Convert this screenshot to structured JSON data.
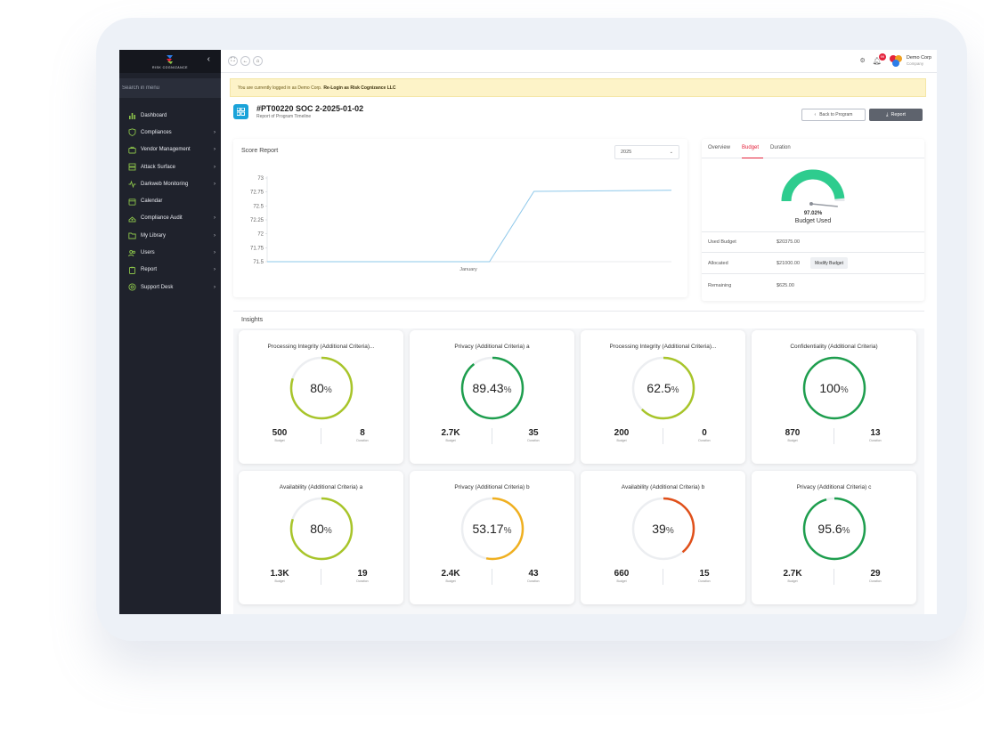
{
  "brand": {
    "name": "RISK COGNIZANCE"
  },
  "sidebar": {
    "search_placeholder": "Search in menu",
    "items": [
      {
        "label": "Dashboard",
        "icon": "bar-chart-icon",
        "has_children": false
      },
      {
        "label": "Compliances",
        "icon": "shield-icon",
        "has_children": true
      },
      {
        "label": "Vendor Management",
        "icon": "briefcase-icon",
        "has_children": true
      },
      {
        "label": "Attack Surface",
        "icon": "server-icon",
        "has_children": true
      },
      {
        "label": "Darkweb Monitoring",
        "icon": "pulse-icon",
        "has_children": true
      },
      {
        "label": "Calendar",
        "icon": "calendar-icon",
        "has_children": false
      },
      {
        "label": "Compliance Audit",
        "icon": "audit-icon",
        "has_children": true
      },
      {
        "label": "My Library",
        "icon": "folder-icon",
        "has_children": true
      },
      {
        "label": "Users",
        "icon": "users-icon",
        "has_children": true
      },
      {
        "label": "Report",
        "icon": "clipboard-icon",
        "has_children": true
      },
      {
        "label": "Support Desk",
        "icon": "lifebuoy-icon",
        "has_children": true
      }
    ],
    "accent": "#8bc34a"
  },
  "topbar": {
    "notification_count": "99",
    "org_name": "Demo Corp",
    "org_type": "Company"
  },
  "notice": {
    "text": "You are currently logged in as Demo Corp.",
    "link": "Re-Login as Risk Cognizance LLC"
  },
  "page": {
    "title": "#PT00220 SOC 2-2025-01-02",
    "subtitle": "Report of Program Timeline",
    "back_label": "Back to Program",
    "report_label": "Report"
  },
  "score_report": {
    "title": "Score Report",
    "year": "2025"
  },
  "chart_data": {
    "type": "line",
    "title": "Score Report",
    "xlabel": "",
    "ylabel": "",
    "x_tick_labels": [
      "January"
    ],
    "y_ticks": [
      71.5,
      71.75,
      72,
      72.25,
      72.5,
      72.75,
      73
    ],
    "ylim": [
      71.5,
      73
    ],
    "grid": false,
    "series": [
      {
        "color": "#8ec8ea",
        "points": [
          [
            0,
            71.5
          ],
          [
            0.55,
            71.5
          ],
          [
            0.66,
            72.76
          ],
          [
            1,
            72.78
          ]
        ]
      }
    ]
  },
  "budget": {
    "tabs": [
      "Overview",
      "Budget",
      "Duration"
    ],
    "active_tab": "Budget",
    "used_percent": 97.02,
    "used_percent_label": "97.02%",
    "gauge_label": "Budget Used",
    "gauge_color": "#2ecc8e",
    "rows": [
      {
        "label": "Used Budget",
        "value": "$20375.00"
      },
      {
        "label": "Allocated",
        "value": "$21000.00",
        "action": "Modify Budget"
      },
      {
        "label": "Remaining",
        "value": "$625.00"
      }
    ]
  },
  "insights": {
    "title": "Insights",
    "budget_caption": "Budget",
    "duration_caption": "Duration",
    "cards": [
      {
        "title": "Processing Integrity (Additional Criteria)...",
        "percent": 80,
        "percent_label": "80",
        "budget": "500",
        "duration": "8",
        "color": "#a8c52a"
      },
      {
        "title": "Privacy (Additional Criteria) a",
        "percent": 89.43,
        "percent_label": "89.43",
        "budget": "2.7K",
        "duration": "35",
        "color": "#1e9e4e"
      },
      {
        "title": "Processing Integrity (Additional Criteria)...",
        "percent": 62.5,
        "percent_label": "62.5",
        "budget": "200",
        "duration": "0",
        "color": "#a8c52a"
      },
      {
        "title": "Confidentiality (Additional Criteria)",
        "percent": 100,
        "percent_label": "100",
        "budget": "870",
        "duration": "13",
        "color": "#1e9e4e"
      },
      {
        "title": "Availability (Additional Criteria) a",
        "percent": 80,
        "percent_label": "80",
        "budget": "1.3K",
        "duration": "19",
        "color": "#a8c52a"
      },
      {
        "title": "Privacy (Additional Criteria) b",
        "percent": 53.17,
        "percent_label": "53.17",
        "budget": "2.4K",
        "duration": "43",
        "color": "#f0b020"
      },
      {
        "title": "Availability (Additional Criteria) b",
        "percent": 39,
        "percent_label": "39",
        "budget": "660",
        "duration": "15",
        "color": "#e0501a"
      },
      {
        "title": "Privacy (Additional Criteria) c",
        "percent": 95.6,
        "percent_label": "95.6",
        "budget": "2.7K",
        "duration": "29",
        "color": "#1e9e4e"
      }
    ]
  }
}
